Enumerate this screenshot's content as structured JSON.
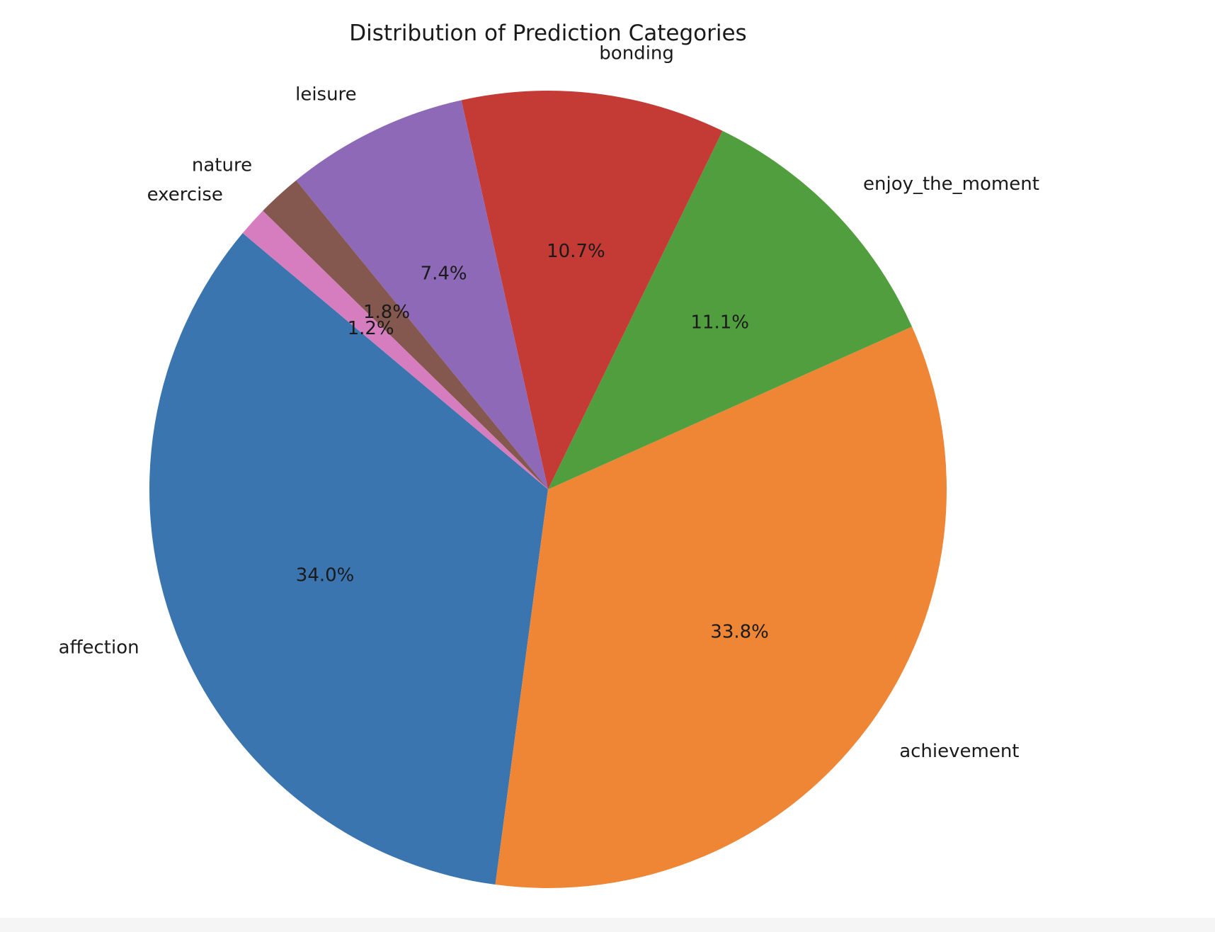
{
  "chart_data": {
    "type": "pie",
    "title": "Distribution of Prediction Categories",
    "start_angle_deg": 140,
    "direction": "counterclockwise",
    "categories": [
      "affection",
      "achievement",
      "enjoy_the_moment",
      "bonding",
      "leisure",
      "nature",
      "exercise"
    ],
    "values": [
      34.0,
      33.8,
      11.1,
      10.7,
      7.4,
      1.8,
      1.2
    ],
    "percent_labels": [
      "34.0%",
      "33.8%",
      "11.1%",
      "10.7%",
      "7.4%",
      "1.8%",
      "1.2%"
    ],
    "colors": [
      "#3b75af",
      "#ee8636",
      "#519e3e",
      "#c43a35",
      "#8d69b8",
      "#84584e",
      "#d57dbf"
    ]
  }
}
